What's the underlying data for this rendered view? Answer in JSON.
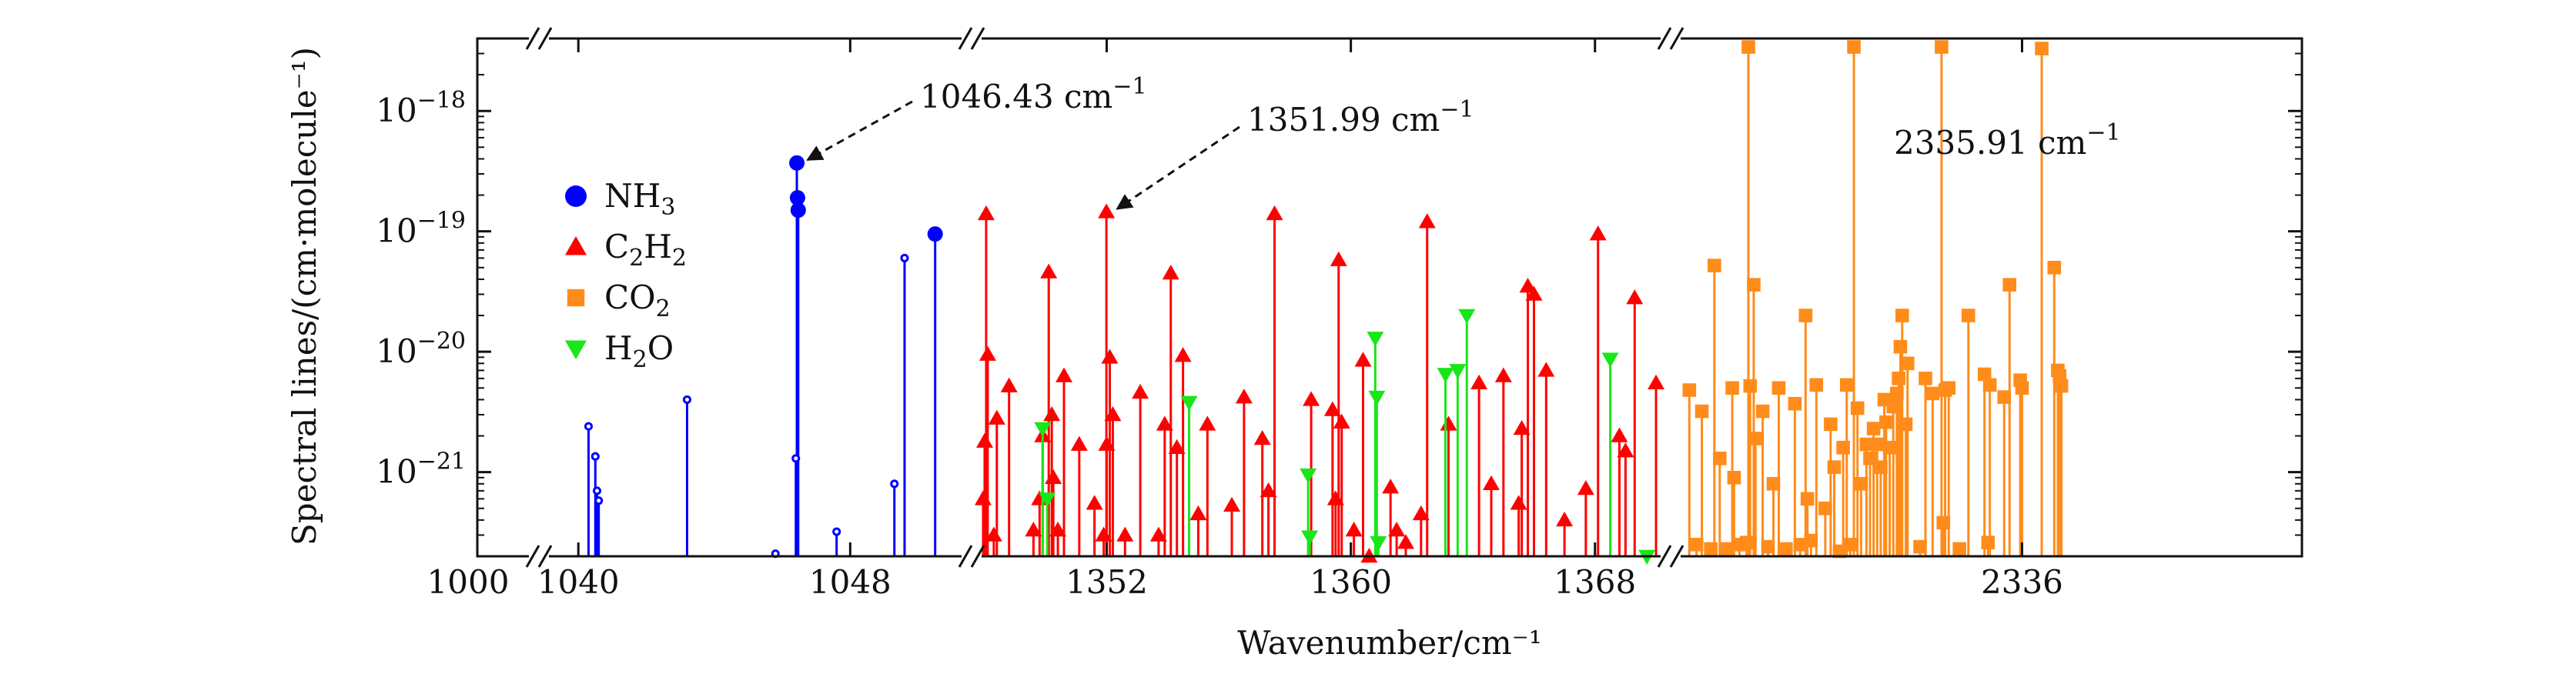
{
  "chart_data": {
    "type": "stem",
    "log_y": true,
    "ylim": [
      2e-22,
      4e-18
    ],
    "xlabel": "Wavenumber/cm⁻¹",
    "ylabel": "Spectral lines/(cm·molecule⁻¹)",
    "y_ticks": [
      {
        "value": 1e-21,
        "base": "10",
        "exp": "−21"
      },
      {
        "value": 1e-20,
        "base": "10",
        "exp": "−20"
      },
      {
        "value": 1e-19,
        "base": "10",
        "exp": "−19"
      },
      {
        "value": 1e-18,
        "base": "10",
        "exp": "−18"
      }
    ],
    "x_panels": [
      {
        "range": [
          1038.5,
          1051.3
        ],
        "ticks": [
          {
            "value": 1040,
            "label": "1040"
          },
          {
            "value": 1048,
            "label": "1048"
          }
        ],
        "extra_label": "1000"
      },
      {
        "range": [
          1347.9,
          1370.1
        ],
        "ticks": [
          {
            "value": 1352,
            "label": "1352"
          },
          {
            "value": 1360,
            "label": "1360"
          },
          {
            "value": 1368,
            "label": "1368"
          }
        ]
      },
      {
        "range": [
          2335.62,
          2336.3
        ],
        "ticks": [
          {
            "value": 2336,
            "label": "2336"
          }
        ]
      }
    ],
    "series": [
      {
        "name": "NH",
        "sub": "3",
        "color": "#0000ff",
        "marker": "circle",
        "points": [
          [
            1040.3,
            2.4e-21
          ],
          [
            1040.5,
            1.35e-21
          ],
          [
            1040.55,
            7e-22
          ],
          [
            1040.6,
            5.8e-22
          ],
          [
            1043.2,
            4e-21
          ],
          [
            1045.8,
            2.1e-22
          ],
          [
            1046.43,
            3.7e-19
          ],
          [
            1046.45,
            1.9e-19
          ],
          [
            1046.47,
            1.5e-19
          ],
          [
            1046.4,
            1.3e-21
          ],
          [
            1047.6,
            3.2e-22
          ],
          [
            1049.3,
            8e-22
          ],
          [
            1049.6,
            6e-20
          ],
          [
            1050.5,
            9.5e-20
          ]
        ]
      },
      {
        "name": "C",
        "sub": "2",
        "name2": "H",
        "sub2": "2",
        "color": "#ff0000",
        "marker": "triangle",
        "points": [
          [
            1347.95,
            6e-22
          ],
          [
            1348.0,
            1.8e-21
          ],
          [
            1348.05,
            1.4e-19
          ],
          [
            1348.1,
            9.5e-21
          ],
          [
            1348.3,
            3e-22
          ],
          [
            1348.4,
            2.8e-21
          ],
          [
            1348.8,
            5.2e-21
          ],
          [
            1349.6,
            3.3e-22
          ],
          [
            1349.8,
            6e-22
          ],
          [
            1349.9,
            2e-21
          ],
          [
            1350.1,
            4.6e-20
          ],
          [
            1350.2,
            3e-21
          ],
          [
            1350.25,
            9e-22
          ],
          [
            1350.4,
            3.3e-22
          ],
          [
            1350.6,
            6.3e-21
          ],
          [
            1351.1,
            1.7e-21
          ],
          [
            1351.6,
            5.5e-22
          ],
          [
            1351.9,
            3e-22
          ],
          [
            1351.99,
            1.45e-19
          ],
          [
            1352.0,
            1.7e-21
          ],
          [
            1352.1,
            9e-21
          ],
          [
            1352.2,
            3e-21
          ],
          [
            1352.6,
            3e-22
          ],
          [
            1353.1,
            4.6e-21
          ],
          [
            1353.7,
            3e-22
          ],
          [
            1353.9,
            2.5e-21
          ],
          [
            1354.1,
            4.5e-20
          ],
          [
            1354.3,
            1.6e-21
          ],
          [
            1354.5,
            9.3e-21
          ],
          [
            1355.0,
            4.5e-22
          ],
          [
            1355.3,
            2.5e-21
          ],
          [
            1356.1,
            5.3e-22
          ],
          [
            1356.5,
            4.2e-21
          ],
          [
            1357.1,
            1.9e-21
          ],
          [
            1357.3,
            7e-22
          ],
          [
            1357.5,
            1.4e-19
          ],
          [
            1358.7,
            4e-21
          ],
          [
            1359.4,
            3.3e-21
          ],
          [
            1359.5,
            6e-22
          ],
          [
            1359.6,
            5.8e-20
          ],
          [
            1359.7,
            2.6e-21
          ],
          [
            1360.1,
            3.3e-22
          ],
          [
            1360.4,
            8.5e-21
          ],
          [
            1360.6,
            2e-22
          ],
          [
            1361.3,
            7.5e-22
          ],
          [
            1361.5,
            3.3e-22
          ],
          [
            1361.8,
            2.6e-22
          ],
          [
            1362.3,
            4.5e-22
          ],
          [
            1362.5,
            1.2e-19
          ],
          [
            1363.2,
            2.5e-21
          ],
          [
            1364.2,
            5.5e-21
          ],
          [
            1364.6,
            8e-22
          ],
          [
            1365.0,
            6.3e-21
          ],
          [
            1365.5,
            5.5e-22
          ],
          [
            1365.6,
            2.3e-21
          ],
          [
            1365.8,
            3.5e-20
          ],
          [
            1366.0,
            3e-20
          ],
          [
            1366.4,
            7e-21
          ],
          [
            1367.0,
            4e-22
          ],
          [
            1367.7,
            7.3e-22
          ],
          [
            1368.1,
            9.5e-20
          ],
          [
            1368.8,
            2e-21
          ],
          [
            1369.0,
            1.5e-21
          ],
          [
            1369.3,
            2.8e-20
          ],
          [
            1370.0,
            5.5e-21
          ]
        ]
      },
      {
        "name": "CO",
        "sub": "2",
        "color": "#ff8c1a",
        "marker": "square",
        "points": [
          [
            2335.628,
            4.8e-21
          ],
          [
            2335.636,
            2.5e-22
          ],
          [
            2335.642,
            3.2e-21
          ],
          [
            2335.652,
            2.3e-22
          ],
          [
            2335.656,
            5.2e-20
          ],
          [
            2335.662,
            1.3e-21
          ],
          [
            2335.67,
            2.3e-22
          ],
          [
            2335.676,
            5e-21
          ],
          [
            2335.678,
            9e-22
          ],
          [
            2335.684,
            2.5e-22
          ],
          [
            2335.692,
            2.6e-22
          ],
          [
            2335.694,
            3.4e-18
          ],
          [
            2335.696,
            5.2e-21
          ],
          [
            2335.7,
            3.6e-20
          ],
          [
            2335.702,
            1.9e-21
          ],
          [
            2335.71,
            3.2e-21
          ],
          [
            2335.716,
            2.4e-22
          ],
          [
            2335.722,
            8e-22
          ],
          [
            2335.728,
            5e-21
          ],
          [
            2335.736,
            2.3e-22
          ],
          [
            2335.746,
            3.7e-21
          ],
          [
            2335.752,
            2.5e-22
          ],
          [
            2335.758,
            2e-20
          ],
          [
            2335.76,
            6e-22
          ],
          [
            2335.764,
            2.7e-22
          ],
          [
            2335.77,
            5.3e-21
          ],
          [
            2335.78,
            5e-22
          ],
          [
            2335.786,
            2.5e-21
          ],
          [
            2335.79,
            1.1e-21
          ],
          [
            2335.796,
            2.2e-22
          ],
          [
            2335.8,
            1.6e-21
          ],
          [
            2335.804,
            5.3e-21
          ],
          [
            2335.808,
            2.5e-22
          ],
          [
            2335.812,
            3.4e-18
          ],
          [
            2335.816,
            3.4e-21
          ],
          [
            2335.82,
            8e-22
          ],
          [
            2335.826,
            1.7e-21
          ],
          [
            2335.83,
            1.3e-21
          ],
          [
            2335.834,
            2.3e-21
          ],
          [
            2335.838,
            1.7e-21
          ],
          [
            2335.842,
            1.1e-21
          ],
          [
            2335.846,
            4e-21
          ],
          [
            2335.848,
            2.6e-21
          ],
          [
            2335.852,
            1.6e-21
          ],
          [
            2335.856,
            3.5e-21
          ],
          [
            2335.86,
            4.5e-21
          ],
          [
            2335.862,
            6e-21
          ],
          [
            2335.864,
            1.1e-20
          ],
          [
            2335.866,
            2e-20
          ],
          [
            2335.87,
            2.5e-21
          ],
          [
            2335.872,
            8e-21
          ],
          [
            2335.886,
            2.4e-22
          ],
          [
            2335.892,
            6e-21
          ],
          [
            2335.9,
            4.5e-21
          ],
          [
            2335.91,
            3.4e-18
          ],
          [
            2335.912,
            3.8e-22
          ],
          [
            2335.914,
            4.8e-21
          ],
          [
            2335.918,
            5e-21
          ],
          [
            2335.93,
            2.3e-22
          ],
          [
            2335.94,
            2e-20
          ],
          [
            2335.958,
            6.5e-21
          ],
          [
            2335.962,
            2.6e-22
          ],
          [
            2335.964,
            5.3e-21
          ],
          [
            2335.98,
            4.2e-21
          ],
          [
            2335.986,
            3.6e-20
          ],
          [
            2335.998,
            5.8e-21
          ],
          [
            2336.0,
            5e-21
          ],
          [
            2336.022,
            3.3e-18
          ],
          [
            2336.036,
            5e-20
          ],
          [
            2336.04,
            7e-21
          ],
          [
            2336.042,
            6.3e-21
          ],
          [
            2336.044,
            5.2e-21
          ]
        ]
      },
      {
        "name": "H",
        "sub": "2",
        "name2": "O",
        "color": "#19e619",
        "marker": "triangle-down",
        "points": [
          [
            1349.9,
            2.3e-21
          ],
          [
            1350.05,
            6e-22
          ],
          [
            1354.7,
            3.8e-21
          ],
          [
            1358.6,
            9.5e-22
          ],
          [
            1358.65,
            2.9e-22
          ],
          [
            1360.8,
            1.3e-20
          ],
          [
            1360.85,
            4.2e-21
          ],
          [
            1360.9,
            2.6e-22
          ],
          [
            1363.1,
            6.5e-21
          ],
          [
            1363.5,
            7e-21
          ],
          [
            1363.8,
            2e-20
          ],
          [
            1368.5,
            8.7e-21
          ],
          [
            1369.7,
            2e-22
          ]
        ]
      }
    ],
    "annotations": [
      {
        "value": "1046.43 cm",
        "sup": "−1",
        "target_series": 0,
        "target_point": 6
      },
      {
        "value": "1351.99 cm",
        "sup": "−1",
        "target_series": 1,
        "target_point": 18
      },
      {
        "value": "2335.91 cm",
        "sup": "−1"
      }
    ]
  }
}
